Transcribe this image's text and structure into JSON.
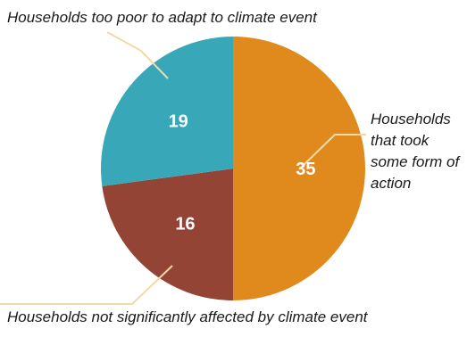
{
  "chart_data": {
    "type": "pie",
    "title": "",
    "slices": [
      {
        "label": "Households that took some form of action",
        "value": 35,
        "color": "#E08A1E"
      },
      {
        "label": "Households not significantly affected by climate event",
        "value": 16,
        "color": "#944435"
      },
      {
        "label": "Households too poor to adapt to climate event",
        "value": 19,
        "color": "#38A8B8"
      }
    ],
    "start_angle": "12 o'clock",
    "direction": "clockwise",
    "legend": "none",
    "leader_line_color": "#F2D9A6"
  }
}
